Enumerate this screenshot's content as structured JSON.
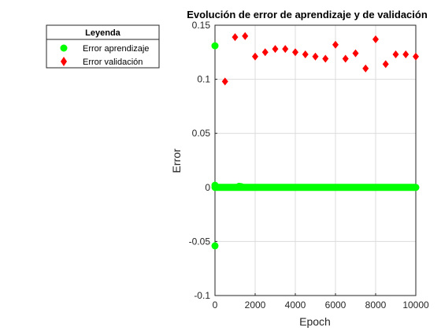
{
  "chart_data": {
    "type": "scatter",
    "title": "Evolución de error de aprendizaje y de validación",
    "xlabel": "Epoch",
    "ylabel": "Error",
    "xlim": [
      0,
      10000
    ],
    "ylim": [
      -0.1,
      0.15
    ],
    "xticks": [
      "0",
      "2000",
      "4000",
      "6000",
      "8000",
      "10000"
    ],
    "yticks": [
      "-0.1",
      "-0.05",
      "0",
      "0.05",
      "0.1",
      "0.15"
    ],
    "grid": true,
    "legend": {
      "title": "Leyenda",
      "placement": "outside-left-top",
      "entries": [
        "Error aprendizaje",
        "Error validación"
      ]
    },
    "series": [
      {
        "name": "Error aprendizaje",
        "marker": "circle",
        "color": "#00ff00",
        "x_range": [
          0,
          10000
        ],
        "x": [
          0,
          0,
          0,
          1200,
          1300
        ],
        "y": [
          0.131,
          -0.054,
          0.002,
          0.001,
          0.0008
        ],
        "baseline": 0.0
      },
      {
        "name": "Error validación",
        "marker": "diamond",
        "color": "#ff0000",
        "x": [
          500,
          1000,
          1500,
          2000,
          2500,
          3000,
          3500,
          4000,
          4500,
          5000,
          5500,
          6000,
          6500,
          7000,
          7500,
          8000,
          8500,
          9000,
          9500,
          10000
        ],
        "y": [
          0.098,
          0.139,
          0.14,
          0.121,
          0.125,
          0.128,
          0.128,
          0.125,
          0.123,
          0.121,
          0.119,
          0.132,
          0.119,
          0.124,
          0.11,
          0.137,
          0.114,
          0.123,
          0.123,
          0.121
        ]
      }
    ]
  }
}
